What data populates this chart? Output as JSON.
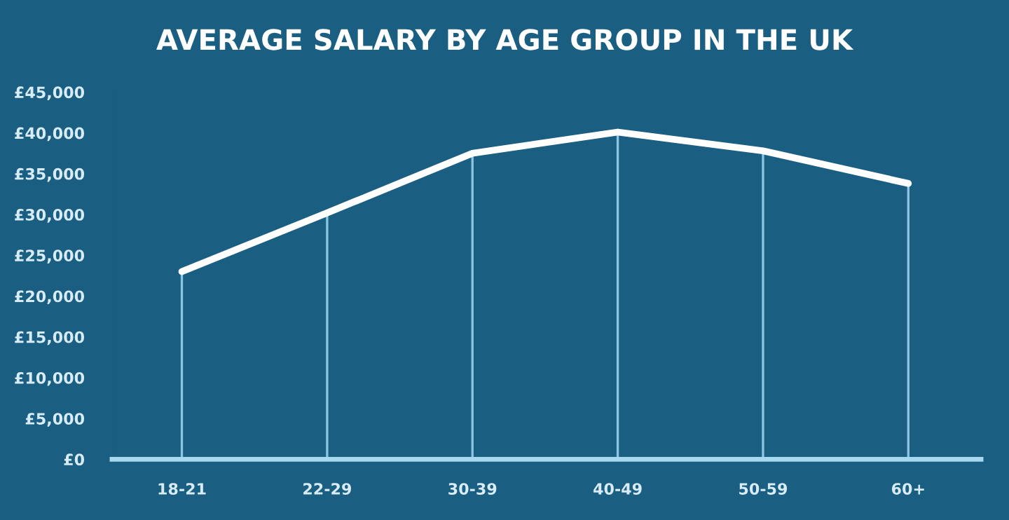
{
  "chart_data": {
    "type": "line",
    "title": "AVERAGE SALARY BY AGE GROUP IN THE UK",
    "categories": [
      "18-21",
      "22-29",
      "30-39",
      "40-49",
      "50-59",
      "60+"
    ],
    "series": [
      {
        "color": "#ffffff",
        "values": [
          23000,
          30200,
          37500,
          40100,
          37800,
          33800
        ]
      }
    ],
    "ylim": [
      0,
      45000
    ],
    "yticks": [
      {
        "value": 0,
        "label": "£0"
      },
      {
        "value": 5000,
        "label": "£5,000"
      },
      {
        "value": 10000,
        "label": "£10,000"
      },
      {
        "value": 15000,
        "label": "£15,000"
      },
      {
        "value": 20000,
        "label": "£20,000"
      },
      {
        "value": 25000,
        "label": "£25,000"
      },
      {
        "value": 30000,
        "label": "£30,000"
      },
      {
        "value": 35000,
        "label": "£35,000"
      },
      {
        "value": 40000,
        "label": "£40,000"
      },
      {
        "value": 45000,
        "label": "£45,000"
      }
    ],
    "grid": "x",
    "marker": "none",
    "line_style": "solid"
  }
}
